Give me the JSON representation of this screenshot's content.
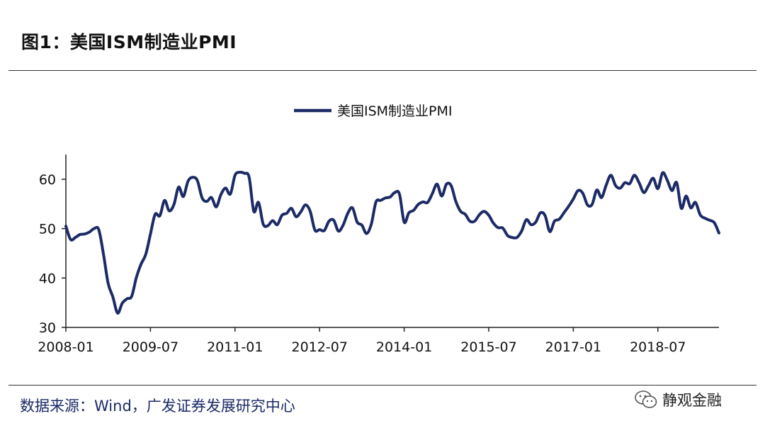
{
  "header": {
    "title": "图1：美国ISM制造业PMI"
  },
  "footer": {
    "source": "数据来源：Wind，广发证券发展研究中心",
    "watermark": "静观金融"
  },
  "colors": {
    "series": "#1c2b66",
    "axis": "#222222",
    "text": "#111111"
  },
  "icons": {
    "watermark_icon": "wechat-icon"
  },
  "chart_data": {
    "type": "line",
    "title": "",
    "xlabel": "",
    "ylabel": "",
    "ylim": [
      30,
      65
    ],
    "yticks": [
      30,
      40,
      50,
      60
    ],
    "xticks": [
      "2008-01",
      "2009-07",
      "2011-01",
      "2012-07",
      "2014-01",
      "2015-07",
      "2017-01",
      "2018-07"
    ],
    "legend": "top-center",
    "grid": false,
    "series": [
      {
        "name": "美国ISM制造业PMI",
        "x": [
          "2008-01",
          "2008-02",
          "2008-03",
          "2008-04",
          "2008-05",
          "2008-06",
          "2008-07",
          "2008-08",
          "2008-09",
          "2008-10",
          "2008-11",
          "2008-12",
          "2009-01",
          "2009-02",
          "2009-03",
          "2009-04",
          "2009-05",
          "2009-06",
          "2009-07",
          "2009-08",
          "2009-09",
          "2009-10",
          "2009-11",
          "2009-12",
          "2010-01",
          "2010-02",
          "2010-03",
          "2010-04",
          "2010-05",
          "2010-06",
          "2010-07",
          "2010-08",
          "2010-09",
          "2010-10",
          "2010-11",
          "2010-12",
          "2011-01",
          "2011-02",
          "2011-03",
          "2011-04",
          "2011-05",
          "2011-06",
          "2011-07",
          "2011-08",
          "2011-09",
          "2011-10",
          "2011-11",
          "2011-12",
          "2012-01",
          "2012-02",
          "2012-03",
          "2012-04",
          "2012-05",
          "2012-06",
          "2012-07",
          "2012-08",
          "2012-09",
          "2012-10",
          "2012-11",
          "2012-12",
          "2013-01",
          "2013-02",
          "2013-03",
          "2013-04",
          "2013-05",
          "2013-06",
          "2013-07",
          "2013-08",
          "2013-09",
          "2013-10",
          "2013-11",
          "2013-12",
          "2014-01",
          "2014-02",
          "2014-03",
          "2014-04",
          "2014-05",
          "2014-06",
          "2014-07",
          "2014-08",
          "2014-09",
          "2014-10",
          "2014-11",
          "2014-12",
          "2015-01",
          "2015-02",
          "2015-03",
          "2015-04",
          "2015-05",
          "2015-06",
          "2015-07",
          "2015-08",
          "2015-09",
          "2015-10",
          "2015-11",
          "2015-12",
          "2016-01",
          "2016-02",
          "2016-03",
          "2016-04",
          "2016-05",
          "2016-06",
          "2016-07",
          "2016-08",
          "2016-09",
          "2016-10",
          "2016-11",
          "2016-12",
          "2017-01",
          "2017-02",
          "2017-03",
          "2017-04",
          "2017-05",
          "2017-06",
          "2017-07",
          "2017-08",
          "2017-09",
          "2017-10",
          "2017-11",
          "2017-12",
          "2018-01",
          "2018-02",
          "2018-03",
          "2018-04",
          "2018-05",
          "2018-06",
          "2018-07",
          "2018-08",
          "2018-09",
          "2018-10",
          "2018-11",
          "2018-12",
          "2019-01",
          "2019-02",
          "2019-03",
          "2019-04",
          "2019-05",
          "2019-06",
          "2019-07",
          "2019-08"
        ],
        "values": [
          50.5,
          47.8,
          48.2,
          48.8,
          48.9,
          49.3,
          50.0,
          49.8,
          44.8,
          38.9,
          36.2,
          32.9,
          34.9,
          35.8,
          36.3,
          40.1,
          42.8,
          44.8,
          48.9,
          52.9,
          52.6,
          55.7,
          53.6,
          54.9,
          58.4,
          56.5,
          59.6,
          60.4,
          59.7,
          56.2,
          55.5,
          56.3,
          54.4,
          56.9,
          58.2,
          57.0,
          60.8,
          61.4,
          61.2,
          60.4,
          53.5,
          55.3,
          50.9,
          50.6,
          51.6,
          50.8,
          52.7,
          53.1,
          54.1,
          52.4,
          53.4,
          54.8,
          53.5,
          49.7,
          49.8,
          49.6,
          51.5,
          51.7,
          49.5,
          50.7,
          53.1,
          54.2,
          51.3,
          50.7,
          49.0,
          50.9,
          55.4,
          55.7,
          56.2,
          56.4,
          57.3,
          57.0,
          51.3,
          53.2,
          53.7,
          54.9,
          55.4,
          55.3,
          57.1,
          59.0,
          56.6,
          59.0,
          58.7,
          55.5,
          53.5,
          52.9,
          51.5,
          51.5,
          52.8,
          53.5,
          52.7,
          51.1,
          50.2,
          50.1,
          48.6,
          48.2,
          48.2,
          49.5,
          51.8,
          50.8,
          51.3,
          53.2,
          52.6,
          49.4,
          51.5,
          51.9,
          53.2,
          54.5,
          56.0,
          57.7,
          57.2,
          54.8,
          54.9,
          57.8,
          56.3,
          58.8,
          60.8,
          58.7,
          58.2,
          59.3,
          59.1,
          60.8,
          59.3,
          57.3,
          58.7,
          60.2,
          58.1,
          61.3,
          59.8,
          57.7,
          59.3,
          54.1,
          56.6,
          54.2,
          55.3,
          52.8,
          52.1,
          51.7,
          51.2,
          49.1
        ]
      }
    ]
  }
}
